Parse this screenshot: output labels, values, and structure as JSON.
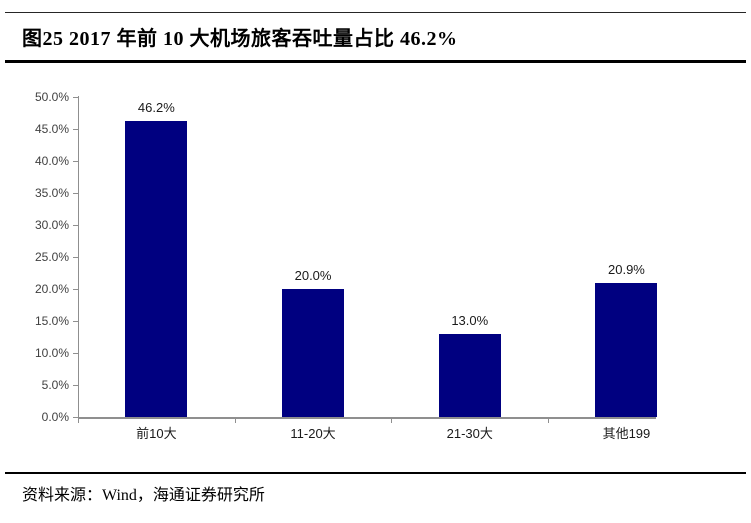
{
  "figure": {
    "title": "图25 2017 年前 10 大机场旅客吞吐量占比 46.2%",
    "source_label": "资料来源：Wind，海通证券研究所"
  },
  "chart_data": {
    "type": "bar",
    "title": "2017 年前 10 大机场旅客吞吐量占比 46.2%",
    "categories": [
      "前10大",
      "11-20大",
      "21-30大",
      "其他199"
    ],
    "values": [
      46.2,
      20.0,
      13.0,
      20.9
    ],
    "value_labels": [
      "46.2%",
      "20.0%",
      "13.0%",
      "20.9%"
    ],
    "xlabel": "",
    "ylabel": "",
    "ylim": [
      0,
      50
    ],
    "ytick_step": 5,
    "ytick_labels": [
      "0.0%",
      "5.0%",
      "10.0%",
      "15.0%",
      "20.0%",
      "25.0%",
      "30.0%",
      "35.0%",
      "40.0%",
      "45.0%",
      "50.0%"
    ],
    "grid": false,
    "legend": "none",
    "colors": {
      "bar": "#000080",
      "axis": "#8f8f8f",
      "tick_label": "#404040",
      "value_label": "#1a1a1a"
    }
  }
}
